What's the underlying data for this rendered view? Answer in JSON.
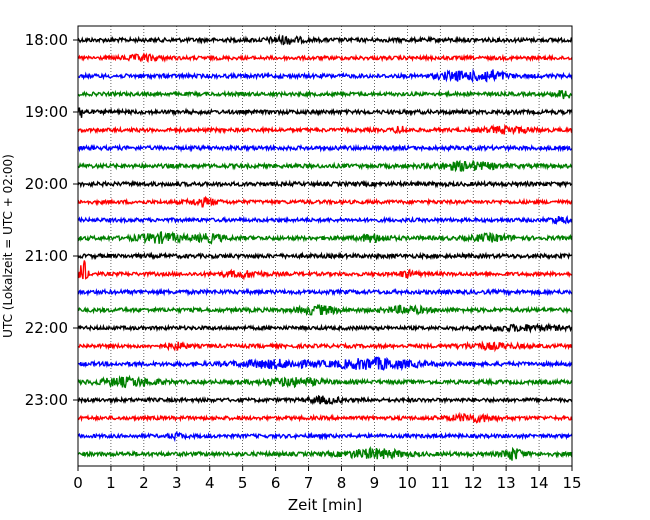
{
  "chart_data": {
    "type": "line",
    "xlabel": "Zeit  [min]",
    "ylabel": "UTC (Lokalzeit = UTC + 02:00)",
    "xlim": [
      0,
      15
    ],
    "x_ticks": [
      "0",
      "1",
      "2",
      "3",
      "4",
      "5",
      "6",
      "7",
      "8",
      "9",
      "10",
      "11",
      "12",
      "13",
      "14",
      "15"
    ],
    "y_ticks": [
      {
        "label": "18:00",
        "row": 0
      },
      {
        "label": "19:00",
        "row": 4
      },
      {
        "label": "20:00",
        "row": 8
      },
      {
        "label": "21:00",
        "row": 12
      },
      {
        "label": "22:00",
        "row": 16
      },
      {
        "label": "23:00",
        "row": 20
      }
    ],
    "grid": "vertical dotted",
    "series_colors": [
      "#000000",
      "#ff0000",
      "#0000ff",
      "#008000"
    ],
    "traces": [
      {
        "start": "18:00",
        "color": "#000000",
        "noise": 0.22,
        "bursts": [
          [
            6.3,
            0.8,
            0.35
          ]
        ]
      },
      {
        "start": "18:15",
        "color": "#ff0000",
        "noise": 0.2,
        "bursts": [
          [
            2.0,
            1.0,
            0.25
          ]
        ]
      },
      {
        "start": "18:30",
        "color": "#0000ff",
        "noise": 0.22,
        "bursts": [
          [
            11.5,
            1.0,
            0.4
          ],
          [
            12.5,
            0.8,
            0.55
          ]
        ]
      },
      {
        "start": "18:45",
        "color": "#008000",
        "noise": 0.2,
        "bursts": [
          [
            14.8,
            0.5,
            0.4
          ]
        ]
      },
      {
        "start": "19:00",
        "color": "#000000",
        "noise": 0.22,
        "bursts": [
          [
            0.1,
            0.2,
            0.6
          ]
        ]
      },
      {
        "start": "19:15",
        "color": "#ff0000",
        "noise": 0.2,
        "bursts": [
          [
            9.8,
            0.3,
            0.35
          ],
          [
            13.0,
            1.2,
            0.3
          ]
        ]
      },
      {
        "start": "19:30",
        "color": "#0000ff",
        "noise": 0.22,
        "bursts": []
      },
      {
        "start": "19:45",
        "color": "#008000",
        "noise": 0.22,
        "bursts": [
          [
            11.8,
            1.5,
            0.4
          ]
        ]
      },
      {
        "start": "20:00",
        "color": "#000000",
        "noise": 0.22,
        "bursts": []
      },
      {
        "start": "20:15",
        "color": "#ff0000",
        "noise": 0.2,
        "bursts": [
          [
            3.8,
            0.7,
            0.35
          ]
        ]
      },
      {
        "start": "20:30",
        "color": "#0000ff",
        "noise": 0.2,
        "bursts": [
          [
            14.6,
            0.5,
            0.3
          ]
        ]
      },
      {
        "start": "20:45",
        "color": "#008000",
        "noise": 0.22,
        "bursts": [
          [
            2.5,
            1.2,
            0.45
          ],
          [
            4.0,
            0.8,
            0.35
          ],
          [
            9.0,
            0.7,
            0.35
          ],
          [
            12.5,
            1.0,
            0.3
          ]
        ]
      },
      {
        "start": "21:00",
        "color": "#000000",
        "noise": 0.22,
        "bursts": []
      },
      {
        "start": "21:15",
        "color": "#ff0000",
        "noise": 0.2,
        "bursts": [
          [
            0.15,
            0.2,
            1.5
          ],
          [
            5.0,
            1.0,
            0.3
          ],
          [
            10.0,
            0.5,
            0.3
          ]
        ]
      },
      {
        "start": "21:30",
        "color": "#0000ff",
        "noise": 0.22,
        "bursts": []
      },
      {
        "start": "21:45",
        "color": "#008000",
        "noise": 0.22,
        "bursts": [
          [
            7.3,
            1.0,
            0.4
          ],
          [
            10.0,
            1.0,
            0.35
          ]
        ]
      },
      {
        "start": "22:00",
        "color": "#000000",
        "noise": 0.2,
        "bursts": [
          [
            13.5,
            2.0,
            0.25
          ]
        ]
      },
      {
        "start": "22:15",
        "color": "#ff0000",
        "noise": 0.2,
        "bursts": [
          [
            3.0,
            0.5,
            0.3
          ],
          [
            12.5,
            1.5,
            0.25
          ]
        ]
      },
      {
        "start": "22:30",
        "color": "#0000ff",
        "noise": 0.22,
        "bursts": [
          [
            6.0,
            2.0,
            0.35
          ],
          [
            9.0,
            2.0,
            0.55
          ]
        ]
      },
      {
        "start": "22:45",
        "color": "#008000",
        "noise": 0.22,
        "bursts": [
          [
            1.5,
            1.5,
            0.4
          ],
          [
            6.5,
            1.5,
            0.35
          ]
        ]
      },
      {
        "start": "23:00",
        "color": "#000000",
        "noise": 0.2,
        "bursts": [
          [
            7.5,
            0.8,
            0.3
          ]
        ]
      },
      {
        "start": "23:15",
        "color": "#ff0000",
        "noise": 0.2,
        "bursts": [
          [
            12.0,
            1.2,
            0.35
          ]
        ]
      },
      {
        "start": "23:30",
        "color": "#0000ff",
        "noise": 0.2,
        "bursts": [
          [
            3.0,
            0.4,
            0.25
          ]
        ]
      },
      {
        "start": "23:45",
        "color": "#008000",
        "noise": 0.22,
        "bursts": [
          [
            9.0,
            1.5,
            0.45
          ],
          [
            13.2,
            0.5,
            0.6
          ]
        ]
      }
    ]
  }
}
